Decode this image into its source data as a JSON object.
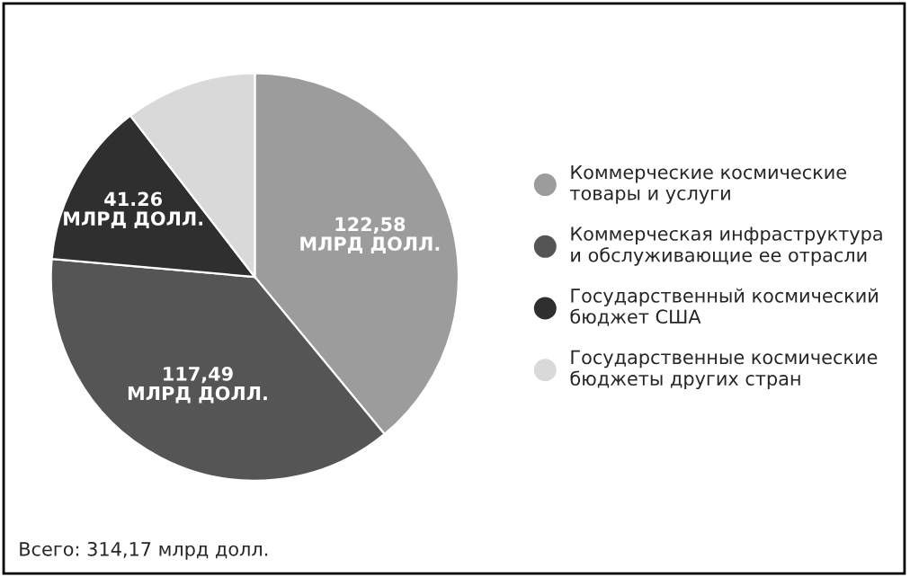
{
  "chart_data": {
    "type": "pie",
    "categories": [
      "Коммерческие космические\nтовары и услуги",
      "Коммерческая инфраструктура\nи обслуживающие ее отрасли",
      "Государственный космический\nбюджет США",
      "Государственные космические\nбюджеты других стран"
    ],
    "values": [
      122.58,
      117.49,
      41.26,
      32.84
    ],
    "colors": [
      "#9c9c9c",
      "#555555",
      "#2f2f2f",
      "#d9d9d9"
    ],
    "value_labels": [
      "122,58\nМЛРД ДОЛЛ.",
      "117,49\nМЛРД ДОЛЛ.",
      "41.26\nМЛРД ДОЛЛ.",
      null
    ],
    "legend": "right",
    "annotations": [
      "Всего: 314,17 млрд долл."
    ]
  }
}
